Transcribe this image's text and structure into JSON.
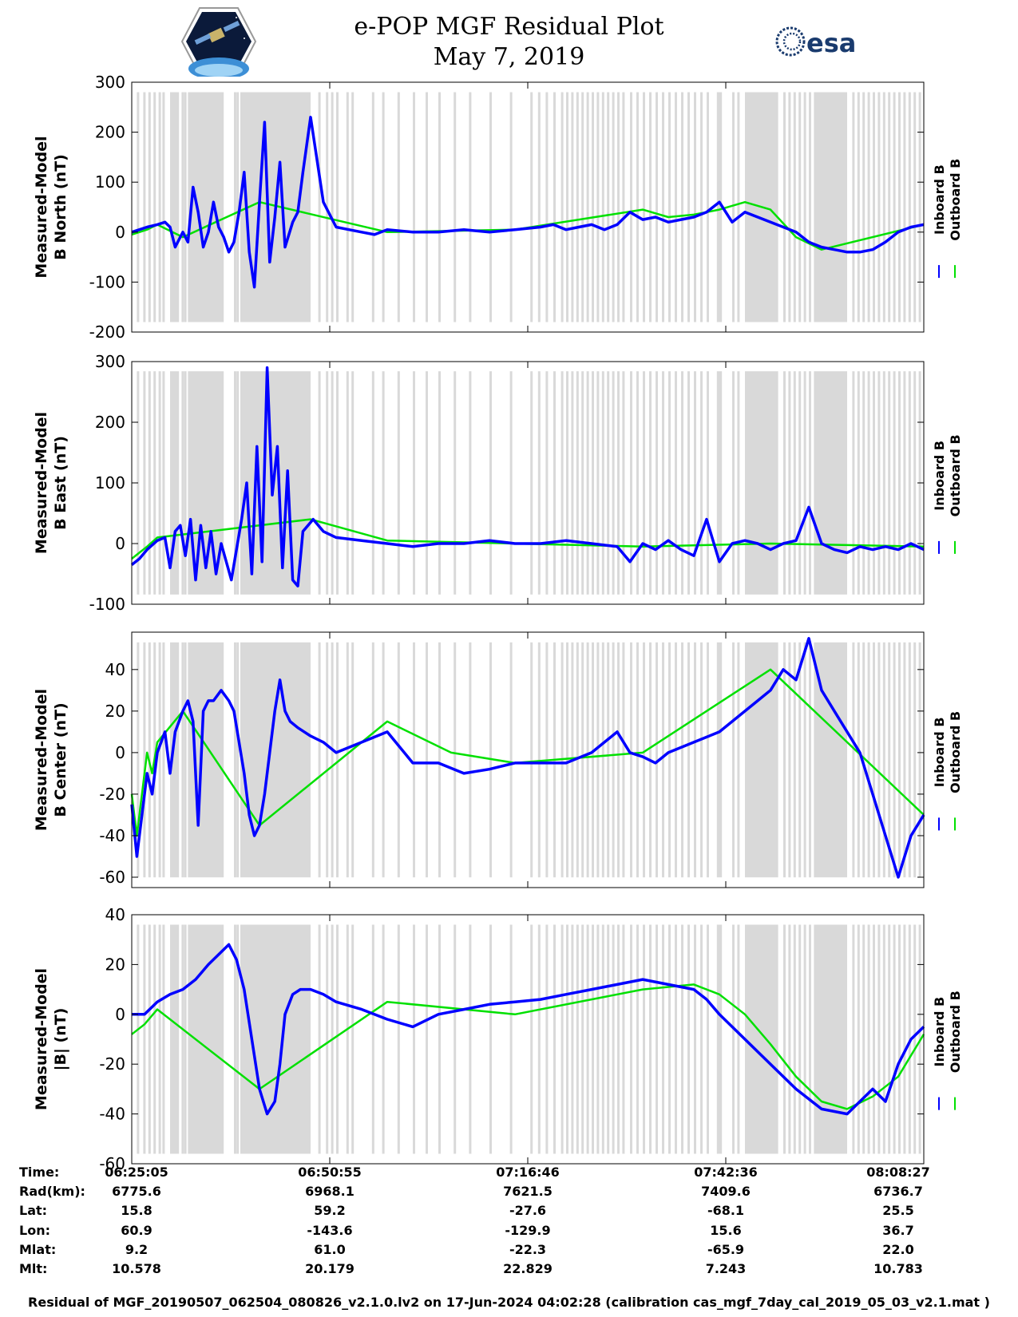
{
  "header": {
    "title_line1": "e-POP MGF Residual Plot",
    "title_line2": "May 7, 2019",
    "logo_left": "cassiope-mission-badge",
    "logo_right_text": "esa"
  },
  "colors": {
    "inboard": "#0000ff",
    "outboard": "#00e000",
    "gap_shading": "#d9d9d9"
  },
  "chart_data": [
    {
      "type": "line",
      "ylabel_line1": "Measured-Model",
      "ylabel_line2": "B North (nT)",
      "ylim": [
        -200,
        300
      ],
      "yticks": [
        -200,
        -100,
        0,
        100,
        200,
        300
      ],
      "xlim": [
        0,
        6200
      ],
      "legend": [
        "Inboard B",
        "Outboard B"
      ],
      "legend_position": "right",
      "series": [
        {
          "name": "Inboard B",
          "x": [
            0,
            60,
            120,
            200,
            260,
            300,
            340,
            380,
            400,
            440,
            480,
            520,
            560,
            600,
            640,
            680,
            720,
            760,
            800,
            840,
            880,
            920,
            960,
            1000,
            1040,
            1080,
            1120,
            1160,
            1200,
            1260,
            1300,
            1340,
            1400,
            1500,
            1600,
            1700,
            1800,
            1900,
            2000,
            2200,
            2400,
            2600,
            2800,
            3000,
            3200,
            3300,
            3400,
            3500,
            3600,
            3700,
            3800,
            3900,
            4000,
            4100,
            4200,
            4300,
            4400,
            4500,
            4600,
            4700,
            4800,
            4900,
            5000,
            5100,
            5200,
            5300,
            5400,
            5500,
            5600,
            5700,
            5800,
            5900,
            6000,
            6100,
            6200
          ],
          "y": [
            0,
            5,
            10,
            15,
            20,
            10,
            -30,
            -10,
            0,
            -20,
            90,
            40,
            -30,
            0,
            60,
            10,
            -10,
            -40,
            -20,
            40,
            120,
            -40,
            -110,
            60,
            220,
            -60,
            30,
            140,
            -30,
            20,
            40,
            120,
            230,
            60,
            10,
            5,
            0,
            -5,
            5,
            0,
            0,
            5,
            0,
            5,
            10,
            15,
            5,
            10,
            15,
            5,
            15,
            40,
            25,
            30,
            20,
            25,
            30,
            40,
            60,
            20,
            40,
            30,
            20,
            10,
            0,
            -20,
            -30,
            -35,
            -40,
            -40,
            -35,
            -20,
            0,
            10,
            15
          ]
        },
        {
          "name": "Outboard B",
          "x": [
            0,
            60,
            120,
            200,
            400,
            1000,
            2000,
            3000,
            4000,
            4200,
            4400,
            4600,
            4800,
            5000,
            5200,
            5400,
            6200
          ],
          "y": [
            -5,
            0,
            5,
            15,
            -10,
            60,
            0,
            5,
            45,
            30,
            35,
            45,
            60,
            45,
            -10,
            -35,
            15
          ]
        }
      ]
    },
    {
      "type": "line",
      "ylabel_line1": "Measured-Model",
      "ylabel_line2": "B East (nT)",
      "ylim": [
        -100,
        300
      ],
      "yticks": [
        -100,
        0,
        100,
        200,
        300
      ],
      "xlim": [
        0,
        6200
      ],
      "legend": [
        "Inboard B",
        "Outboard B"
      ],
      "legend_position": "right",
      "series": [
        {
          "name": "Inboard B",
          "x": [
            0,
            60,
            120,
            200,
            260,
            300,
            340,
            380,
            420,
            460,
            500,
            540,
            580,
            620,
            660,
            700,
            740,
            780,
            820,
            860,
            900,
            940,
            980,
            1020,
            1060,
            1100,
            1140,
            1180,
            1220,
            1260,
            1300,
            1340,
            1380,
            1420,
            1500,
            1600,
            1800,
            2000,
            2200,
            2400,
            2600,
            2800,
            3000,
            3200,
            3400,
            3600,
            3800,
            3900,
            4000,
            4100,
            4200,
            4300,
            4400,
            4500,
            4600,
            4700,
            4800,
            4900,
            5000,
            5100,
            5200,
            5300,
            5400,
            5500,
            5600,
            5700,
            5800,
            5900,
            6000,
            6100,
            6200
          ],
          "y": [
            -35,
            -25,
            -10,
            5,
            10,
            -40,
            20,
            30,
            -20,
            40,
            -60,
            30,
            -40,
            20,
            -50,
            0,
            -30,
            -60,
            -10,
            40,
            100,
            -50,
            160,
            -30,
            290,
            80,
            160,
            -40,
            120,
            -60,
            -70,
            20,
            30,
            40,
            20,
            10,
            5,
            0,
            -5,
            0,
            0,
            5,
            0,
            0,
            5,
            0,
            -5,
            -30,
            0,
            -10,
            5,
            -10,
            -20,
            40,
            -30,
            0,
            5,
            0,
            -10,
            0,
            5,
            60,
            0,
            -10,
            -15,
            -5,
            -10,
            -5,
            -10,
            0,
            -10
          ]
        },
        {
          "name": "Outboard B",
          "x": [
            0,
            60,
            120,
            200,
            1400,
            2000,
            3000,
            4000,
            5000,
            6200
          ],
          "y": [
            -25,
            -15,
            -5,
            10,
            40,
            5,
            0,
            -5,
            0,
            -5
          ]
        }
      ]
    },
    {
      "type": "line",
      "ylabel_line1": "Measured-Model",
      "ylabel_line2": "B Center (nT)",
      "ylim": [
        -65,
        58
      ],
      "yticks": [
        -60,
        -40,
        -20,
        0,
        20,
        40
      ],
      "xlim": [
        0,
        6200
      ],
      "legend": [
        "Inboard B",
        "Outboard B"
      ],
      "legend_position": "right",
      "series": [
        {
          "name": "Inboard B",
          "x": [
            0,
            40,
            80,
            120,
            160,
            200,
            260,
            300,
            340,
            400,
            440,
            480,
            520,
            560,
            600,
            640,
            700,
            760,
            800,
            840,
            880,
            920,
            960,
            1000,
            1040,
            1080,
            1120,
            1160,
            1200,
            1240,
            1300,
            1400,
            1500,
            1600,
            1800,
            2000,
            2200,
            2400,
            2600,
            2800,
            3000,
            3200,
            3400,
            3600,
            3800,
            3900,
            4000,
            4100,
            4200,
            4400,
            4600,
            4800,
            4900,
            5000,
            5100,
            5200,
            5300,
            5400,
            5500,
            5600,
            5700,
            5800,
            5900,
            6000,
            6100,
            6200
          ],
          "y": [
            -25,
            -50,
            -30,
            -10,
            -20,
            0,
            10,
            -10,
            10,
            20,
            25,
            15,
            -35,
            20,
            25,
            25,
            30,
            25,
            20,
            5,
            -10,
            -30,
            -40,
            -35,
            -20,
            0,
            20,
            35,
            20,
            15,
            12,
            8,
            5,
            0,
            5,
            10,
            -5,
            -5,
            -10,
            -8,
            -5,
            -5,
            -5,
            0,
            10,
            0,
            -2,
            -5,
            0,
            5,
            10,
            20,
            25,
            30,
            40,
            35,
            55,
            30,
            20,
            10,
            0,
            -20,
            -40,
            -60,
            -40,
            -30
          ]
        },
        {
          "name": "Outboard B",
          "x": [
            0,
            40,
            80,
            120,
            160,
            200,
            400,
            1000,
            2000,
            2500,
            3000,
            4000,
            5000,
            6200
          ],
          "y": [
            -20,
            -40,
            -20,
            0,
            -10,
            5,
            20,
            -35,
            15,
            0,
            -5,
            0,
            40,
            -30
          ]
        }
      ]
    },
    {
      "type": "line",
      "ylabel_line1": "Measured-Model",
      "ylabel_line2": "|B| (nT)",
      "ylim": [
        -60,
        40
      ],
      "yticks": [
        -60,
        -40,
        -20,
        0,
        20,
        40
      ],
      "xlim": [
        0,
        6200
      ],
      "legend": [
        "Inboard B",
        "Outboard B"
      ],
      "legend_position": "right",
      "series": [
        {
          "name": "Inboard B",
          "x": [
            0,
            100,
            200,
            300,
            400,
            500,
            600,
            700,
            760,
            820,
            880,
            940,
            1000,
            1060,
            1120,
            1160,
            1200,
            1260,
            1320,
            1400,
            1500,
            1600,
            1800,
            2000,
            2200,
            2400,
            2600,
            2800,
            3000,
            3200,
            3400,
            3600,
            3800,
            4000,
            4200,
            4400,
            4500,
            4600,
            4800,
            5000,
            5200,
            5400,
            5600,
            5700,
            5800,
            5900,
            6000,
            6100,
            6200
          ],
          "y": [
            0,
            0,
            5,
            8,
            10,
            14,
            20,
            25,
            28,
            22,
            10,
            -10,
            -30,
            -40,
            -35,
            -20,
            0,
            8,
            10,
            10,
            8,
            5,
            2,
            -2,
            -5,
            0,
            2,
            4,
            5,
            6,
            8,
            10,
            12,
            14,
            12,
            10,
            6,
            0,
            -10,
            -20,
            -30,
            -38,
            -40,
            -35,
            -30,
            -35,
            -20,
            -10,
            -5
          ]
        },
        {
          "name": "Outboard B",
          "x": [
            0,
            100,
            200,
            1000,
            2000,
            3000,
            4000,
            4400,
            4600,
            4800,
            5000,
            5200,
            5400,
            5600,
            5800,
            6000,
            6200
          ],
          "y": [
            -8,
            -4,
            2,
            -30,
            5,
            0,
            10,
            12,
            8,
            0,
            -12,
            -25,
            -35,
            -38,
            -33,
            -25,
            -8
          ]
        }
      ]
    }
  ],
  "shading_fraction": 0.92,
  "gap_regions": [
    [
      300,
      370
    ],
    [
      440,
      720
    ],
    [
      850,
      1400
    ],
    [
      4580,
      4620
    ],
    [
      4800,
      5060
    ],
    [
      5340,
      5600
    ]
  ],
  "gap_lines": [
    40,
    90,
    130,
    170,
    210,
    240,
    390,
    410,
    800,
    820,
    1460,
    1520,
    1560,
    1600,
    1680,
    1720,
    1880,
    1960,
    2080,
    2200,
    2300,
    2400,
    2520,
    2640,
    2800,
    2960,
    3120,
    3180,
    3240,
    3300,
    3360,
    3400,
    3440,
    3480,
    3520,
    3560,
    3600,
    3640,
    3680,
    3720,
    3760,
    3800,
    3840,
    3900,
    3950,
    4000,
    4050,
    4100,
    4150,
    4200,
    4250,
    4300,
    4350,
    4400,
    4450,
    4500,
    4700,
    4740,
    5100,
    5140,
    5180,
    5220,
    5260,
    5300,
    5640,
    5680,
    5720,
    5760,
    5800,
    5840,
    5880,
    5920,
    5960,
    6000,
    6040,
    6080,
    6120,
    6160
  ],
  "x_axis": {
    "tick_positions": [
      0,
      1550,
      3100,
      4650,
      6200
    ],
    "row_labels": [
      "Time:",
      "Rad(km):",
      "Lat:",
      "Lon:",
      "Mlat:",
      "Mlt:"
    ],
    "columns": [
      [
        "06:25:05",
        "6775.6",
        "15.8",
        "60.9",
        "9.2",
        "10.578"
      ],
      [
        "06:50:55",
        "6968.1",
        "59.2",
        "-143.6",
        "61.0",
        "20.179"
      ],
      [
        "07:16:46",
        "7621.5",
        "-27.6",
        "-129.9",
        "-22.3",
        "22.829"
      ],
      [
        "07:42:36",
        "7409.6",
        "-68.1",
        "15.6",
        "-65.9",
        "7.243"
      ],
      [
        "08:08:27",
        "6736.7",
        "25.5",
        "36.7",
        "22.0",
        "10.783"
      ]
    ]
  },
  "footer": "Residual of MGF_20190507_062504_080826_v2.1.0.lv2 on 17-Jun-2024 04:02:28 (calibration cas_mgf_7day_cal_2019_05_03_v2.1.mat )"
}
